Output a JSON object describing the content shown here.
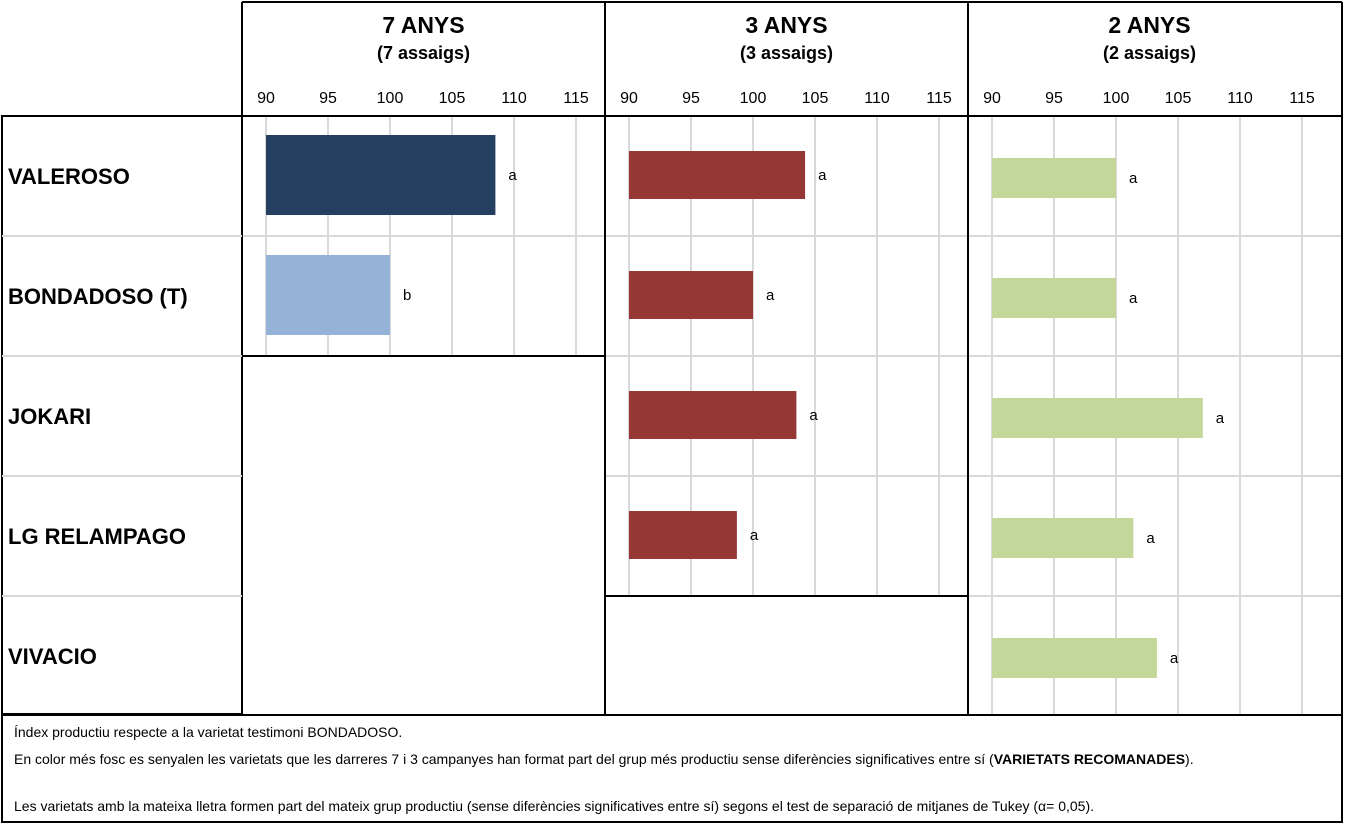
{
  "chart_data": {
    "type": "bar",
    "orientation": "horizontal",
    "varieties": [
      "VALEROSO",
      "BONDADOSO (T)",
      "JOKARI",
      "LG RELAMPAGO",
      "VIVACIO"
    ],
    "xticks": [
      90,
      95,
      100,
      105,
      110,
      115
    ],
    "xlim": [
      89,
      121
    ],
    "grid": true,
    "panels": [
      {
        "title": "7 ANYS",
        "subtitle": "(7 assaigs)",
        "rows": 2,
        "values": [
          108.5,
          100,
          null,
          null,
          null
        ],
        "letters": [
          "a",
          "b",
          "",
          "",
          ""
        ],
        "colors": [
          "#243f60",
          "#95b3d7"
        ]
      },
      {
        "title": "3 ANYS",
        "subtitle": "(3 assaigs)",
        "rows": 4,
        "values": [
          104.2,
          100,
          103.5,
          98.7,
          null
        ],
        "letters": [
          "a",
          "a",
          "a",
          "a",
          ""
        ],
        "colors": [
          "#953735",
          "#953735",
          "#953735",
          "#953735"
        ]
      },
      {
        "title": "2 ANYS",
        "subtitle": "(2 assaigs)",
        "rows": 5,
        "values": [
          100,
          100,
          107,
          101.4,
          103.3
        ],
        "letters": [
          "a",
          "a",
          "a",
          "a",
          "a"
        ],
        "colors": [
          "#c4d79b",
          "#c4d79b",
          "#c4d79b",
          "#c4d79b",
          "#c4d79b"
        ]
      }
    ]
  },
  "notes": {
    "line1": "Índex productiu respecte a la varietat testimoni BONDADOSO.",
    "line2_text": "En color més fosc es senyalen les varietats que les darreres 7 i 3 campanyes han format part del grup més productiu sense diferències significatives entre sí (",
    "line2_bold": "VARIETATS RECOMANADES",
    "line2_end": ").",
    "line3": "Les varietats amb la mateixa lletra formen part del mateix grup productiu (sense diferències significatives entre sí) segons el test de separació de mitjanes de Tukey (α= 0,05)."
  }
}
